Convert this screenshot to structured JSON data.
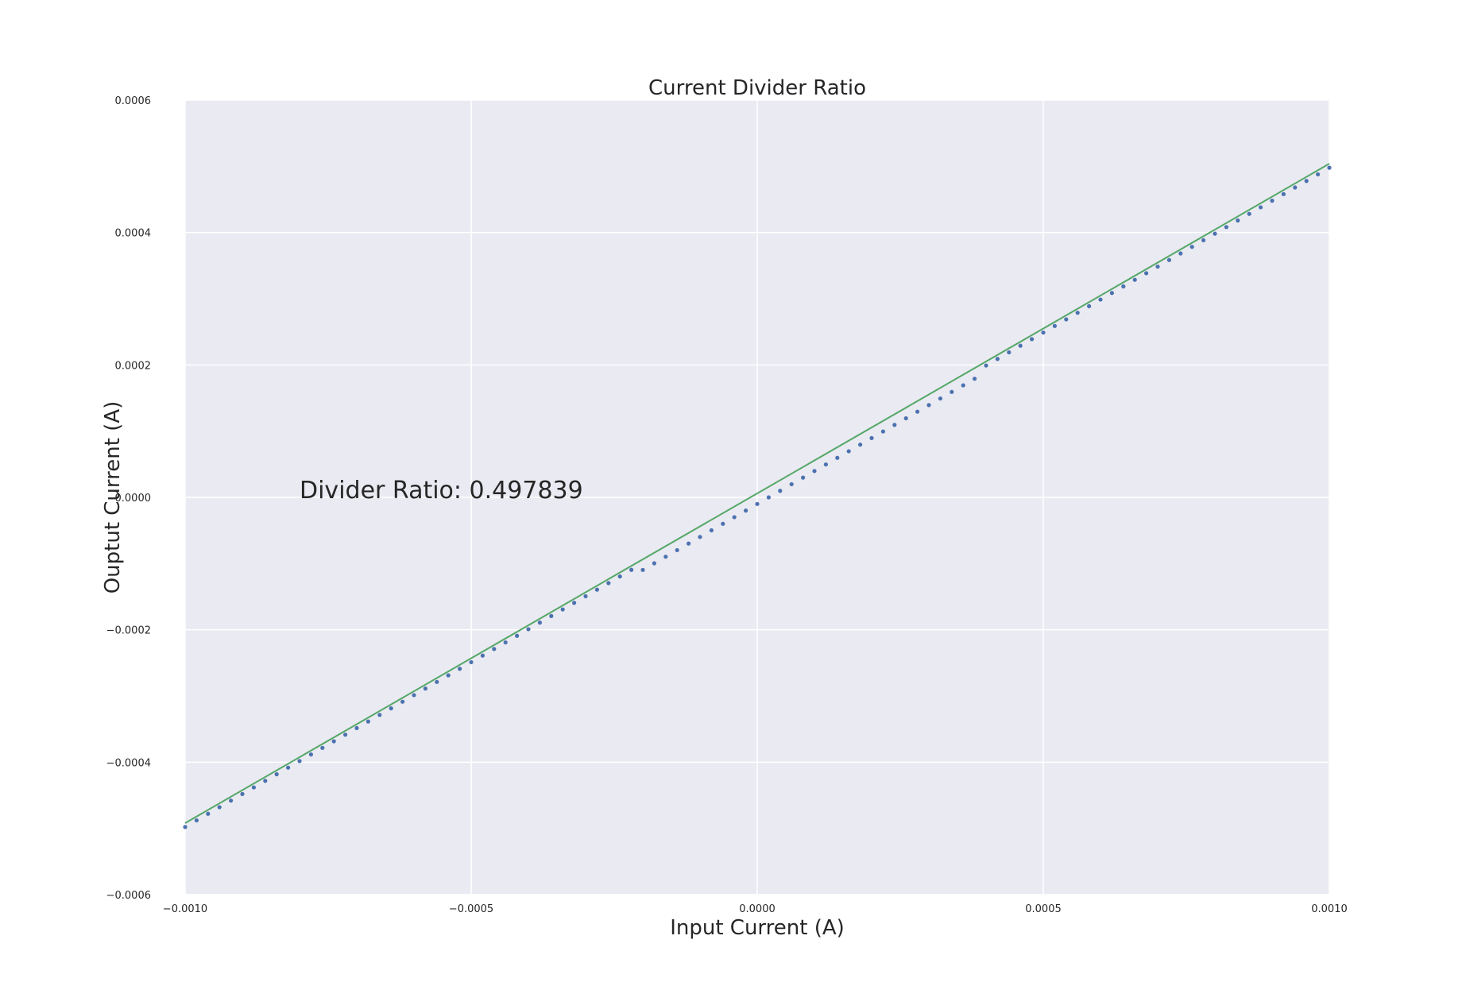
{
  "chart_data": {
    "type": "scatter",
    "title": "Current Divider Ratio",
    "xlabel": "Input Current (A)",
    "ylabel": "Ouptut Current (A)",
    "xlim": [
      -0.001,
      0.001
    ],
    "ylim": [
      -0.0006,
      0.0006
    ],
    "xticks": [
      -0.001,
      -0.0005,
      0.0,
      0.0005,
      0.001
    ],
    "xtick_labels": [
      "−0.0010",
      "−0.0005",
      "0.0000",
      "0.0005",
      "0.0010"
    ],
    "yticks": [
      -0.0006,
      -0.0004,
      -0.0002,
      0.0,
      0.0002,
      0.0004,
      0.0006
    ],
    "ytick_labels": [
      "−0.0006",
      "−0.0004",
      "−0.0002",
      "0.0000",
      "0.0002",
      "0.0004",
      "0.0006"
    ],
    "grid": true,
    "annotation": "Divider Ratio: 0.497839",
    "colors": {
      "background": "#eaeaf2",
      "grid": "#ffffff",
      "points": "#4c72b0",
      "fit_line": "#55a868"
    },
    "series": [
      {
        "kind": "points",
        "x_start": -0.001,
        "x_step": 2e-05,
        "count": 101,
        "slope": 0.497839,
        "offset_near_zero": -1e-05,
        "offset_zone": [
          -0.0002,
          0.0004
        ]
      },
      {
        "kind": "line",
        "x": [
          -0.001,
          0.001
        ],
        "y": [
          -0.000492,
          0.000504
        ]
      }
    ]
  }
}
